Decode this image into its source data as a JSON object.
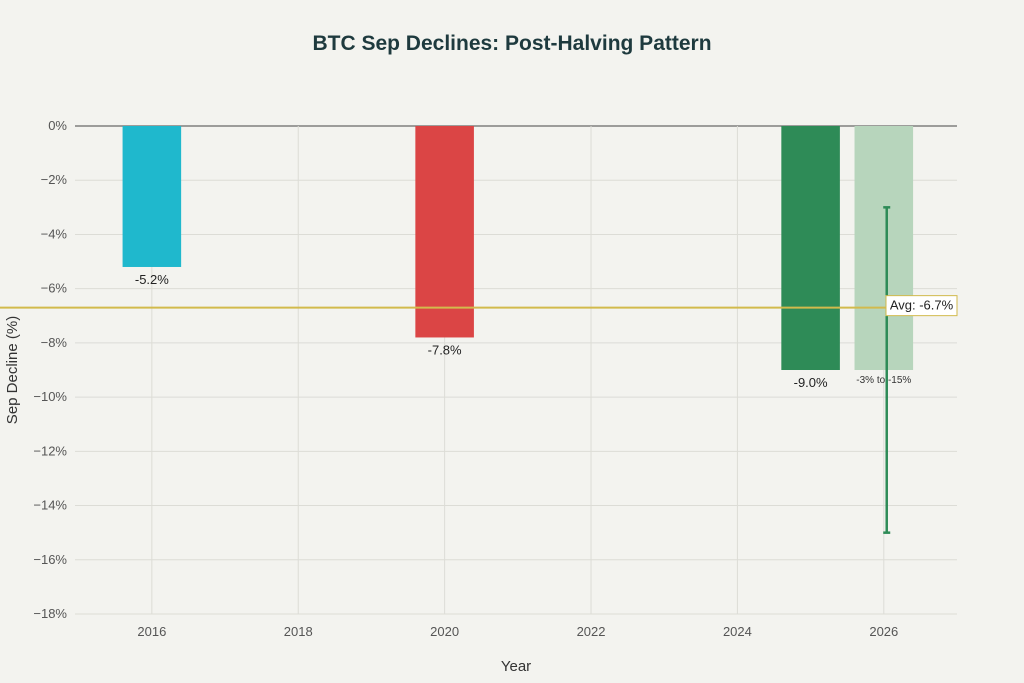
{
  "chart_data": {
    "type": "bar",
    "title": "BTC Sep Declines: Post-Halving Pattern",
    "xlabel": "Year",
    "ylabel": "Sep Decline (%)",
    "x_ticks": [
      "2016",
      "2018",
      "2020",
      "2022",
      "2024",
      "2026"
    ],
    "y_ticks": [
      "0%",
      "−2%",
      "−4%",
      "−6%",
      "−8%",
      "−10%",
      "−12%",
      "−14%",
      "−16%",
      "−18%"
    ],
    "xlim": [
      2014.95,
      2027.0
    ],
    "ylim": [
      -18,
      0
    ],
    "grid": true,
    "bars": [
      {
        "x": 2016,
        "value": -5.2,
        "label": "-5.2%",
        "color": "#1fb8cd"
      },
      {
        "x": 2020,
        "value": -7.8,
        "label": "-7.8%",
        "color": "#db4545"
      },
      {
        "x": 2025,
        "value": -9.0,
        "label": "-9.0%",
        "color": "#2e8b57"
      },
      {
        "x": 2026,
        "value": -9.0,
        "label": "-3% to -15%",
        "color": "#b7d5bc",
        "error_range": [
          -15,
          -3
        ],
        "error_color": "#2e8b57"
      }
    ],
    "average": {
      "value": -6.7,
      "label": "Avg: -6.7%",
      "color": "#d2ba4c"
    }
  }
}
